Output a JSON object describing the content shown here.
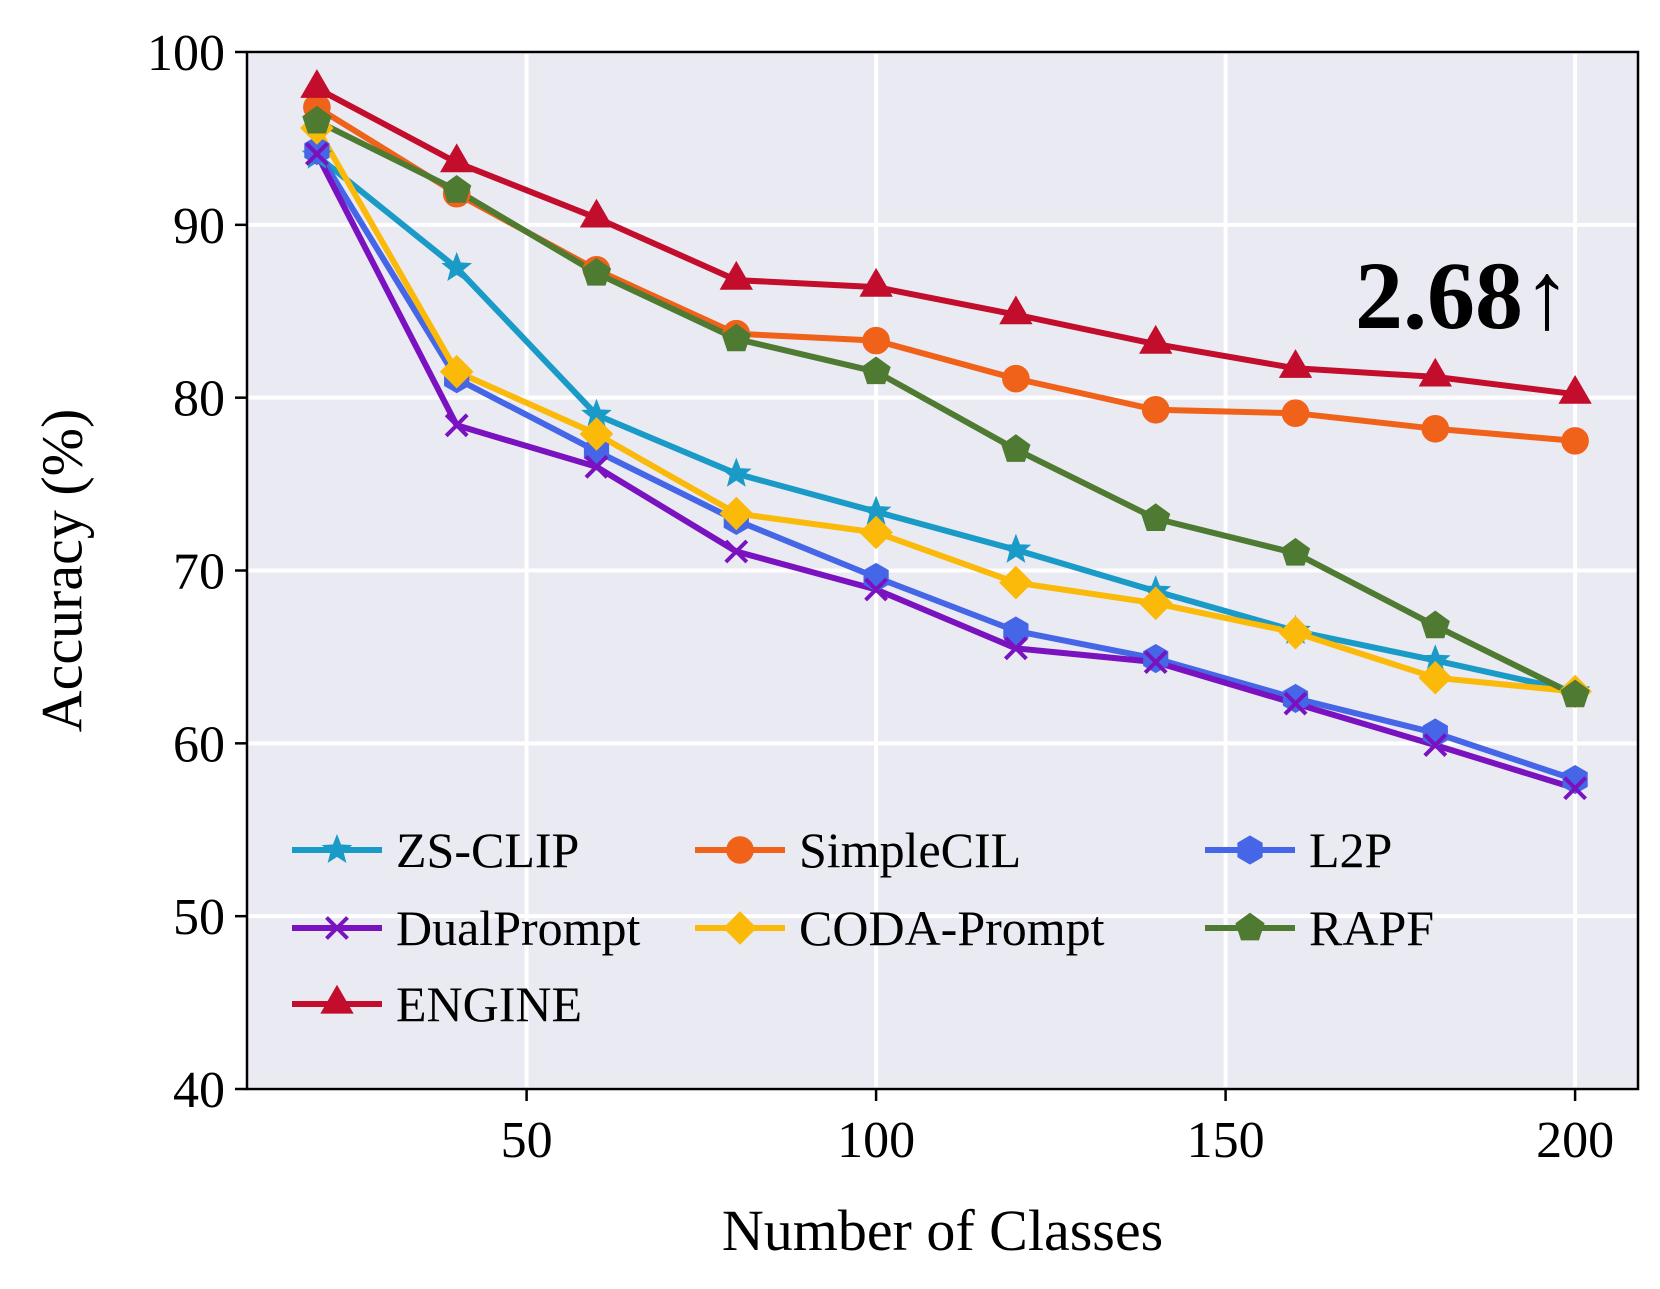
{
  "chart_data": {
    "type": "line",
    "title": "",
    "xlabel": "Number of Classes",
    "ylabel": "Accuracy (%)",
    "xlim": [
      10,
      209
    ],
    "ylim": [
      40,
      100
    ],
    "xticks": [
      50,
      100,
      150,
      200
    ],
    "yticks": [
      40,
      50,
      60,
      70,
      80,
      90,
      100
    ],
    "grid": true,
    "background": "#eaeaf2",
    "legend_position": "lower-left",
    "legend_columns": 3,
    "x": [
      20,
      40,
      60,
      80,
      100,
      120,
      140,
      160,
      180,
      200
    ],
    "series": [
      {
        "name": "ZS-CLIP",
        "color": "#1a9bc7",
        "marker": "star",
        "values": [
          94.0,
          87.5,
          79.0,
          75.6,
          73.4,
          71.2,
          68.8,
          66.5,
          64.8,
          63.0
        ]
      },
      {
        "name": "SimpleCIL",
        "color": "#f0621a",
        "marker": "circle",
        "values": [
          96.8,
          91.8,
          87.4,
          83.7,
          83.3,
          81.1,
          79.3,
          79.1,
          78.2,
          77.5
        ]
      },
      {
        "name": "L2P",
        "color": "#4566e6",
        "marker": "hexagon",
        "values": [
          94.3,
          81.1,
          76.9,
          72.9,
          69.6,
          66.5,
          64.9,
          62.6,
          60.6,
          57.9
        ]
      },
      {
        "name": "DualPrompt",
        "color": "#7a12bf",
        "marker": "x",
        "values": [
          94.1,
          78.4,
          76.0,
          71.1,
          68.9,
          65.5,
          64.7,
          62.3,
          59.9,
          57.4
        ]
      },
      {
        "name": "CODA-Prompt",
        "color": "#fbb90a",
        "marker": "diamond",
        "values": [
          95.6,
          81.5,
          77.9,
          73.3,
          72.2,
          69.3,
          68.1,
          66.4,
          63.8,
          63.0
        ]
      },
      {
        "name": "RAPF",
        "color": "#4e7a32",
        "marker": "pentagon",
        "values": [
          96.0,
          92.0,
          87.2,
          83.4,
          81.5,
          77.0,
          73.0,
          71.0,
          66.8,
          62.8
        ]
      },
      {
        "name": "ENGINE",
        "color": "#c20d2c",
        "marker": "triangle",
        "values": [
          97.9,
          93.6,
          90.4,
          86.8,
          86.4,
          84.8,
          83.1,
          81.7,
          81.2,
          80.2
        ]
      }
    ],
    "annotations": [
      {
        "text": "2.68↑",
        "x": 200,
        "y": 85
      }
    ]
  }
}
